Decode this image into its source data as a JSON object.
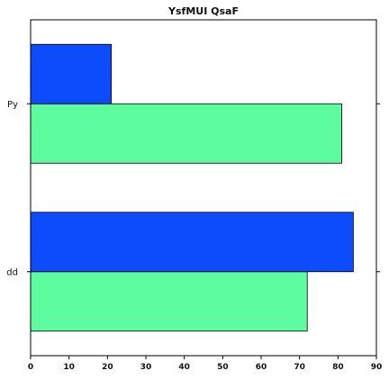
{
  "chart_data": {
    "type": "bar",
    "orientation": "horizontal",
    "title": "YsfMUI QsaF",
    "xlabel": "",
    "ylabel": "",
    "categories": [
      "dd",
      "Py"
    ],
    "series": [
      {
        "values": [
          72,
          81
        ],
        "color": "#5dfd9f"
      },
      {
        "values": [
          84,
          21
        ],
        "color": "#0d4cfd"
      }
    ],
    "xlim": [
      0,
      90
    ],
    "xticks": [
      0,
      10,
      20,
      30,
      40,
      50,
      60,
      70,
      80,
      90
    ],
    "grid": false,
    "legend": "none"
  }
}
